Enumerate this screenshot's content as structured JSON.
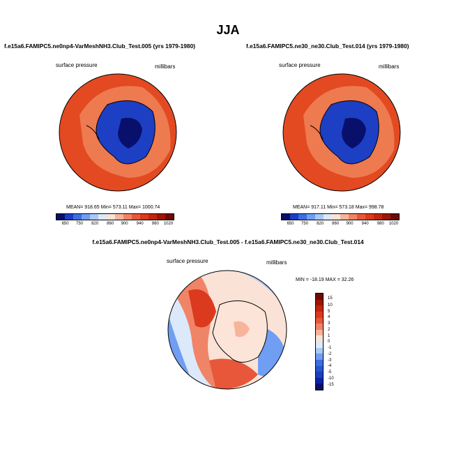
{
  "main_title": "JJA",
  "panels": [
    {
      "title": "f.e15a6.FAMIPC5.ne0np4-VarMeshNH3.Club_Test.005 (yrs 1979-1980)",
      "left_label": "surface pressure",
      "right_label": "millibars",
      "stats": "MEAN= 918.65  Min= 573.11  Max= 1000.74"
    },
    {
      "title": "f.e15a6.FAMIPC5.ne30_ne30.Club_Test.014 (yrs 1979-1980)",
      "left_label": "surface pressure",
      "right_label": "millibars",
      "stats": "MEAN= 917.11  Min= 573.18  Max= 998.78"
    }
  ],
  "diff_panel": {
    "title": "f.e15a6.FAMIPC5.ne0np4-VarMeshNH3.Club_Test.005 - f.e15a6.FAMIPC5.ne30_ne30.Club_Test.014",
    "left_label": "surface pressure",
    "right_label": "millibars",
    "stats": "MIN = -18.19 MAX =  32.26"
  },
  "colorbar_field": {
    "ticks": [
      "650",
      "750",
      "820",
      "860",
      "900",
      "940",
      "980",
      "1020"
    ],
    "colors": [
      "#08106b",
      "#1c3fc2",
      "#3d6fe0",
      "#6f9ef2",
      "#a9c8f7",
      "#dce9fb",
      "#fbe2d6",
      "#f7b49a",
      "#f08466",
      "#e8573a",
      "#db3a1e",
      "#c1270e",
      "#9c1608",
      "#6e0a04"
    ]
  },
  "colorbar_diff": {
    "ticks": [
      "15",
      "10",
      "5",
      "4",
      "3",
      "2",
      "1",
      "0",
      "-1",
      "-2",
      "-3",
      "-4",
      "-5",
      "-10",
      "-15"
    ],
    "colors": [
      "#6e0a04",
      "#9c1608",
      "#c1270e",
      "#db3a1e",
      "#e8573a",
      "#f08466",
      "#f7b49a",
      "#fbe2d6",
      "#dce9fb",
      "#a9c8f7",
      "#6f9ef2",
      "#3d6fe0",
      "#2a55d0",
      "#1c3fc2",
      "#0e24a0",
      "#08106b"
    ]
  },
  "map_colors": {
    "ocean_red": "#e34a22",
    "mid_orange": "#ee7a50",
    "ice_blue": "#1d3fc4",
    "deep_blue": "#08106b",
    "pale": "#fde4d8"
  }
}
